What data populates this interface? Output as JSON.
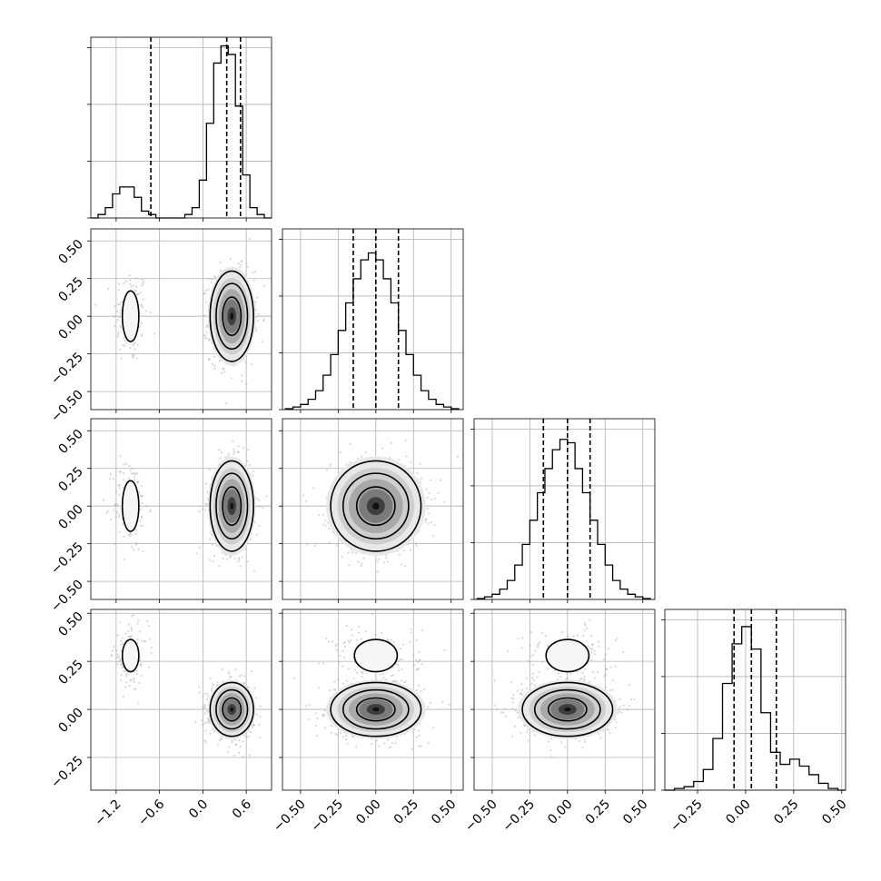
{
  "chart_data": {
    "type": "corner",
    "parameters": 4,
    "title": "",
    "grid": true,
    "axis_ranges": [
      [
        -1.55,
        0.95
      ],
      [
        -0.62,
        0.58
      ],
      [
        -0.62,
        0.58
      ],
      [
        -0.42,
        0.52
      ]
    ],
    "quantiles": [
      [
        -0.72,
        0.33,
        0.52
      ],
      [
        -0.15,
        0.0,
        0.15
      ],
      [
        -0.16,
        0.0,
        0.15
      ],
      [
        -0.06,
        0.03,
        0.16
      ]
    ],
    "x_tick_labels": [
      [
        "−1.2",
        "−0.6",
        "0.0",
        "0.6"
      ],
      [
        "−0.50",
        "−0.25",
        "0.00",
        "0.25",
        "0.50"
      ],
      [
        "−0.50",
        "−0.25",
        "0.00",
        "0.25",
        "0.50"
      ],
      [
        "−0.25",
        "0.00",
        "0.25",
        "0.50"
      ]
    ],
    "y_tick_labels": [
      [
        "−0.50",
        "−0.25",
        "0.00",
        "0.25",
        "0.50"
      ],
      [
        "−0.50",
        "−0.25",
        "0.00",
        "0.25",
        "0.50"
      ],
      [
        "−0.25",
        "0.00",
        "0.25",
        "0.50"
      ]
    ],
    "x_tick_values": [
      [
        -1.2,
        -0.6,
        0.0,
        0.6
      ],
      [
        -0.5,
        -0.25,
        0.0,
        0.25,
        0.5
      ],
      [
        -0.5,
        -0.25,
        0.0,
        0.25,
        0.5
      ],
      [
        -0.25,
        0.0,
        0.25,
        0.5
      ]
    ],
    "y_tick_values": [
      [
        -0.5,
        -0.25,
        0.0,
        0.25,
        0.5
      ],
      [
        -0.5,
        -0.25,
        0.0,
        0.25,
        0.5
      ],
      [
        -0.25,
        0.0,
        0.25,
        0.5
      ]
    ],
    "histograms": [
      {
        "parameter": 1,
        "bin_edges": [
          -1.55,
          -1.45,
          -1.35,
          -1.25,
          -1.15,
          -1.05,
          -0.95,
          -0.85,
          -0.75,
          -0.65,
          -0.55,
          -0.45,
          -0.35,
          -0.25,
          -0.15,
          -0.05,
          0.05,
          0.15,
          0.25,
          0.35,
          0.45,
          0.55,
          0.65,
          0.75,
          0.85,
          0.95
        ],
        "counts": [
          0,
          2,
          6,
          14,
          18,
          18,
          12,
          4,
          2,
          0,
          0,
          0,
          0,
          2,
          6,
          22,
          55,
          90,
          100,
          95,
          65,
          25,
          6,
          2,
          0
        ],
        "y_max": 105
      },
      {
        "parameter": 2,
        "bin_edges": [
          -0.6,
          -0.55,
          -0.5,
          -0.45,
          -0.4,
          -0.35,
          -0.3,
          -0.25,
          -0.2,
          -0.15,
          -0.1,
          -0.05,
          0.0,
          0.05,
          0.1,
          0.15,
          0.2,
          0.25,
          0.3,
          0.35,
          0.4,
          0.45,
          0.5,
          0.55
        ],
        "counts": [
          0.5,
          1.5,
          3,
          6,
          11,
          20,
          32,
          46,
          62,
          76,
          87,
          91,
          87,
          76,
          62,
          46,
          32,
          20,
          11,
          6,
          3,
          1.5,
          0.5
        ],
        "y_max": 105
      },
      {
        "parameter": 3,
        "bin_edges": [
          -0.6,
          -0.55,
          -0.5,
          -0.45,
          -0.4,
          -0.35,
          -0.3,
          -0.25,
          -0.2,
          -0.15,
          -0.1,
          -0.05,
          0.0,
          0.05,
          0.1,
          0.15,
          0.2,
          0.25,
          0.3,
          0.35,
          0.4,
          0.45,
          0.5,
          0.55
        ],
        "counts": [
          0.5,
          1.5,
          3,
          6,
          11,
          20,
          32,
          46,
          62,
          76,
          87,
          93,
          91,
          76,
          62,
          46,
          32,
          20,
          11,
          6,
          3,
          1.5,
          0.5
        ],
        "y_max": 105
      },
      {
        "parameter": 4,
        "bin_edges": [
          -0.42,
          -0.37,
          -0.32,
          -0.27,
          -0.22,
          -0.17,
          -0.12,
          -0.07,
          -0.02,
          0.03,
          0.08,
          0.13,
          0.18,
          0.23,
          0.28,
          0.33,
          0.38,
          0.43,
          0.48,
          0.52
        ],
        "counts": [
          0,
          1,
          2,
          5,
          12,
          30,
          62,
          85,
          95,
          82,
          45,
          22,
          15,
          18,
          14,
          9,
          4,
          1,
          0
        ],
        "y_max": 105
      }
    ],
    "density_modes": [
      {
        "x_param": 1,
        "y_param": 2,
        "modes": [
          {
            "mx": -1.0,
            "my": 0.0,
            "sx": 0.12,
            "sy": 0.16,
            "w": 0.15
          },
          {
            "mx": 0.4,
            "my": 0.0,
            "sx": 0.15,
            "sy": 0.15,
            "w": 0.85
          }
        ]
      },
      {
        "x_param": 1,
        "y_param": 3,
        "modes": [
          {
            "mx": -1.0,
            "my": 0.0,
            "sx": 0.12,
            "sy": 0.16,
            "w": 0.15
          },
          {
            "mx": 0.4,
            "my": 0.0,
            "sx": 0.15,
            "sy": 0.15,
            "w": 0.85
          }
        ]
      },
      {
        "x_param": 2,
        "y_param": 3,
        "modes": [
          {
            "mx": 0.0,
            "my": 0.0,
            "sx": 0.15,
            "sy": 0.15,
            "w": 1.0
          }
        ]
      },
      {
        "x_param": 1,
        "y_param": 4,
        "modes": [
          {
            "mx": -1.0,
            "my": 0.28,
            "sx": 0.12,
            "sy": 0.08,
            "w": 0.15
          },
          {
            "mx": 0.4,
            "my": 0.0,
            "sx": 0.15,
            "sy": 0.07,
            "w": 0.85
          }
        ]
      },
      {
        "x_param": 2,
        "y_param": 4,
        "modes": [
          {
            "mx": 0.0,
            "my": 0.28,
            "sx": 0.15,
            "sy": 0.08,
            "w": 0.15
          },
          {
            "mx": 0.0,
            "my": 0.0,
            "sx": 0.15,
            "sy": 0.07,
            "w": 0.85
          }
        ]
      },
      {
        "x_param": 3,
        "y_param": 4,
        "modes": [
          {
            "mx": 0.0,
            "my": 0.28,
            "sx": 0.15,
            "sy": 0.08,
            "w": 0.15
          },
          {
            "mx": 0.0,
            "my": 0.0,
            "sx": 0.15,
            "sy": 0.07,
            "w": 0.85
          }
        ]
      }
    ]
  }
}
